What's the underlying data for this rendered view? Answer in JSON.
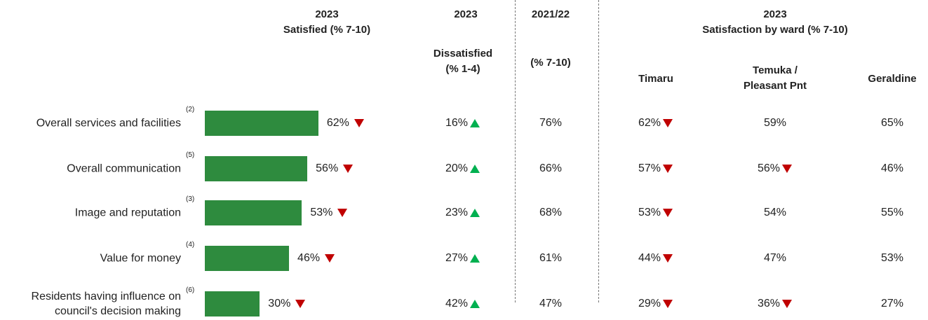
{
  "headers": {
    "satisfied": "2023\nSatisfied (% 7-10)",
    "dissatisfied_year": "2023",
    "dissatisfied": "Dissatisfied\n(% 1-4)",
    "prior_year": "2021/22",
    "prior": "(% 7-10)",
    "ward": "2023\nSatisfaction by ward (% 7-10)",
    "timaru": "Timaru",
    "temuka": "Temuka /\nPleasant Pnt",
    "geraldine": "Geraldine"
  },
  "chart_data": {
    "type": "bar",
    "categories": [
      "Overall services and facilities",
      "Overall communication",
      "Image and reputation",
      "Value for money",
      "Residents having influence on\ncouncil's decision making"
    ],
    "footnotes": [
      "(2)",
      "(5)",
      "(3)",
      "(4)",
      "(6)"
    ],
    "values": [
      62,
      56,
      53,
      46,
      30
    ],
    "value_labels": [
      "62%",
      "56%",
      "53%",
      "46%",
      "30%"
    ],
    "trends": [
      "down",
      "down",
      "down",
      "down",
      "down"
    ],
    "color": "#2e8b3e",
    "xlim": [
      0,
      100
    ]
  },
  "table": {
    "rows": [
      {
        "dissatisfied": {
          "text": "16%",
          "trend": "up"
        },
        "prior": {
          "text": "76%",
          "trend": null
        },
        "timaru": {
          "text": "62%",
          "trend": "down"
        },
        "temuka": {
          "text": "59%",
          "trend": null
        },
        "geraldine": {
          "text": "65%",
          "trend": null
        }
      },
      {
        "dissatisfied": {
          "text": "20%",
          "trend": "up"
        },
        "prior": {
          "text": "66%",
          "trend": null
        },
        "timaru": {
          "text": "57%",
          "trend": "down"
        },
        "temuka": {
          "text": "56%",
          "trend": "down"
        },
        "geraldine": {
          "text": "46%",
          "trend": null
        }
      },
      {
        "dissatisfied": {
          "text": "23%",
          "trend": "up"
        },
        "prior": {
          "text": "68%",
          "trend": null
        },
        "timaru": {
          "text": "53%",
          "trend": "down"
        },
        "temuka": {
          "text": "54%",
          "trend": null
        },
        "geraldine": {
          "text": "55%",
          "trend": null
        }
      },
      {
        "dissatisfied": {
          "text": "27%",
          "trend": "up"
        },
        "prior": {
          "text": "61%",
          "trend": null
        },
        "timaru": {
          "text": "44%",
          "trend": "down"
        },
        "temuka": {
          "text": "47%",
          "trend": null
        },
        "geraldine": {
          "text": "53%",
          "trend": null
        }
      },
      {
        "dissatisfied": {
          "text": "42%",
          "trend": "up"
        },
        "prior": {
          "text": "47%",
          "trend": null
        },
        "timaru": {
          "text": "29%",
          "trend": "down"
        },
        "temuka": {
          "text": "36%",
          "trend": "down"
        },
        "geraldine": {
          "text": "27%",
          "trend": null
        }
      }
    ]
  }
}
